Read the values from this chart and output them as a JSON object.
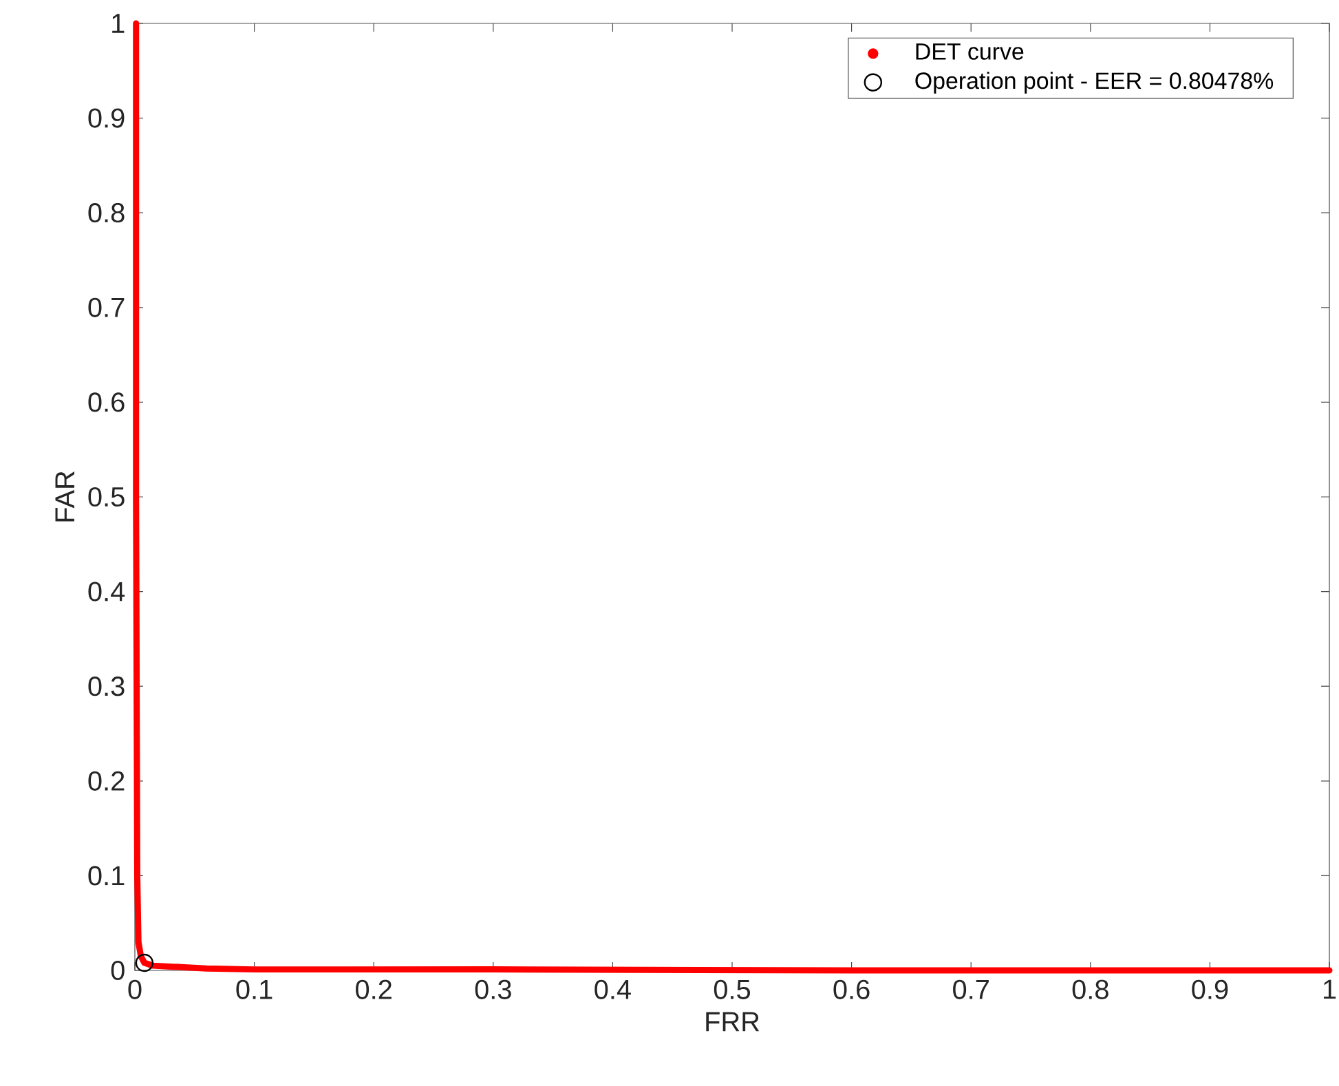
{
  "chart_data": {
    "type": "line",
    "xlabel": "FRR",
    "ylabel": "FAR",
    "xlim": [
      0,
      1
    ],
    "ylim": [
      0,
      1
    ],
    "xticks": [
      0,
      0.1,
      0.2,
      0.3,
      0.4,
      0.5,
      0.6,
      0.7,
      0.8,
      0.9,
      1
    ],
    "yticks": [
      0,
      0.1,
      0.2,
      0.3,
      0.4,
      0.5,
      0.6,
      0.7,
      0.8,
      0.9,
      1
    ],
    "legend": "top right",
    "grid": false,
    "series": [
      {
        "name": "DET curve",
        "color": "#ff0000",
        "x": [
          0.001,
          0.001,
          0.002,
          0.003,
          0.005,
          0.008,
          0.015,
          0.03,
          0.06,
          0.1,
          0.3,
          0.6,
          1.0
        ],
        "values": [
          1.0,
          0.5,
          0.1,
          0.03,
          0.015,
          0.008,
          0.005,
          0.004,
          0.002,
          0.001,
          0.001,
          0,
          0
        ]
      },
      {
        "name": "Operation point - EER = 0.80478%",
        "type": "scatter",
        "marker": "circle",
        "color": "#000000",
        "x": [
          0.008
        ],
        "values": [
          0.008
        ]
      }
    ]
  }
}
